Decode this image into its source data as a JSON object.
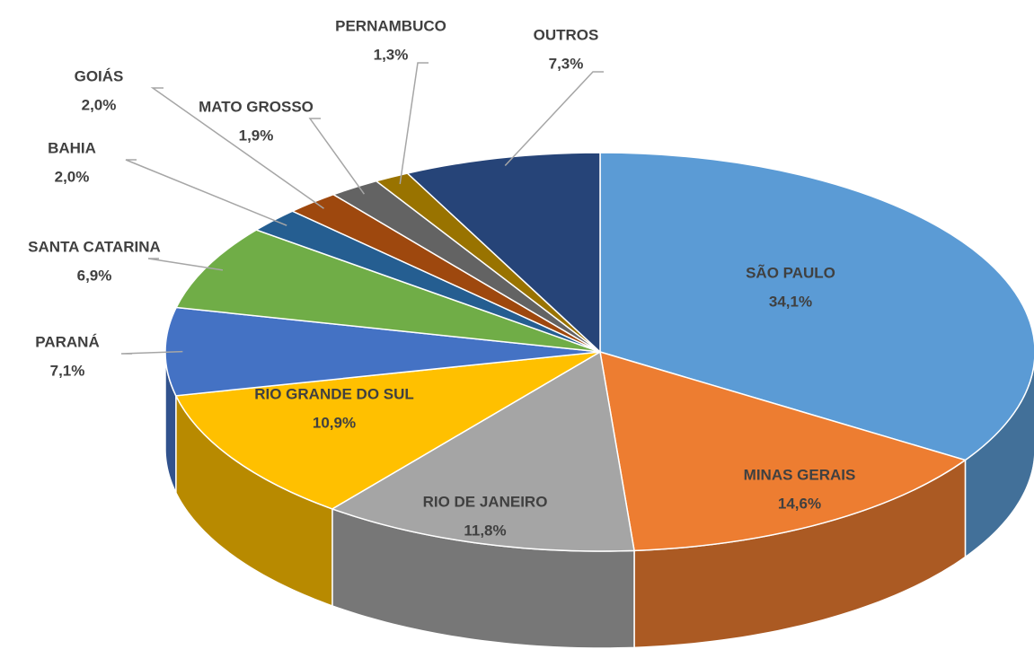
{
  "chart_data": {
    "type": "pie",
    "categories": [
      "SÃO PAULO",
      "MINAS GERAIS",
      "RIO DE JANEIRO",
      "RIO GRANDE DO SUL",
      "PARANÁ",
      "SANTA CATARINA",
      "BAHIA",
      "GOIÁS",
      "MATO GROSSO",
      "PERNAMBUCO",
      "OUTROS"
    ],
    "values": [
      34.1,
      14.6,
      11.8,
      10.9,
      7.1,
      6.9,
      2.0,
      2.0,
      1.9,
      1.3,
      7.3
    ],
    "value_labels": [
      "34,1%",
      "14,6%",
      "11,8%",
      "10,9%",
      "7,1%",
      "6,9%",
      "2,0%",
      "2,0%",
      "1,9%",
      "1,3%",
      "7,3%"
    ],
    "colors": [
      "#5b9bd5",
      "#ed7d31",
      "#a5a5a5",
      "#ffc000",
      "#4472c4",
      "#70ad47",
      "#255e91",
      "#9e480e",
      "#636363",
      "#997300",
      "#264478"
    ]
  }
}
